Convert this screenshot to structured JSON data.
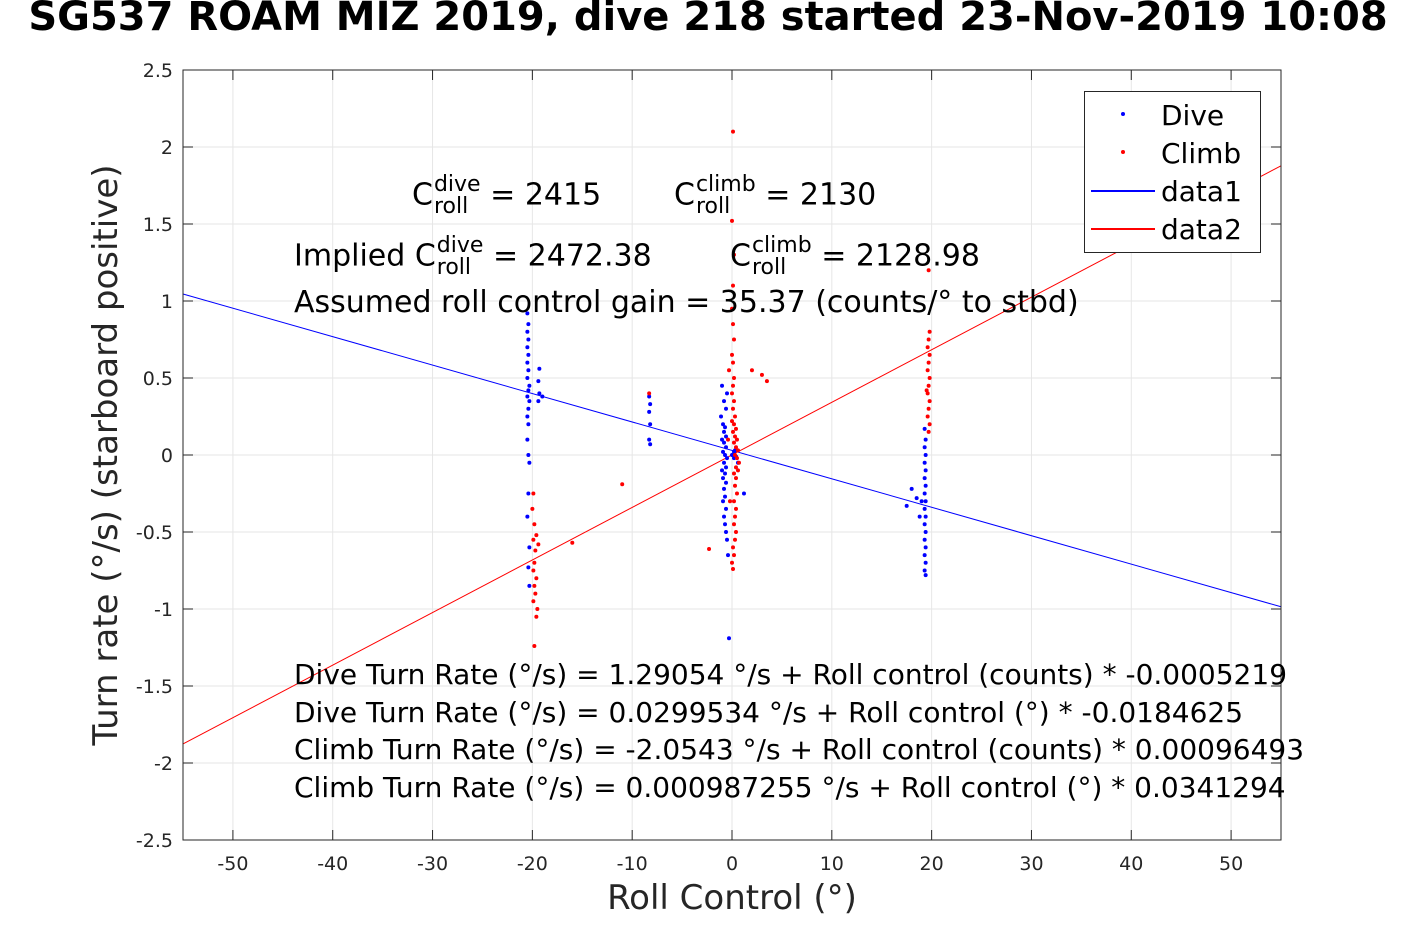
{
  "title": "SG537 ROAM MIZ 2019, dive 218 started 23-Nov-2019 10:08",
  "xlabel": "Roll Control (°)",
  "ylabel": "Turn rate (°/s) (starboard positive)",
  "annotations": {
    "c_roll_dive": {
      "base": "C",
      "sup": "dive",
      "sub": "roll",
      "value": "= 2415"
    },
    "c_roll_climb": {
      "base": "C",
      "sup": "climb",
      "sub": "roll",
      "value": "= 2130"
    },
    "implied_prefix": "Implied ",
    "implied_dive": {
      "base": "C",
      "sup": "dive",
      "sub": "roll",
      "value": "= 2472.38"
    },
    "implied_climb": {
      "base": "C",
      "sup": "climb",
      "sub": "roll",
      "value": "= 2128.98"
    },
    "gain": "Assumed roll control gain = 35.37 (counts/° to stbd)",
    "equations": [
      "Dive Turn Rate (°/s) = 1.29054 °/s + Roll control (counts) * -0.0005219",
      "Dive Turn Rate (°/s) = 0.0299534 °/s + Roll control (°) * -0.0184625",
      "Climb Turn Rate (°/s) = -2.0543 °/s + Roll control (counts) * 0.00096493",
      "Climb Turn Rate (°/s) = 0.000987255 °/s + Roll control (°) * 0.0341294"
    ]
  },
  "legend": {
    "placement": "top-right",
    "entries": [
      {
        "label": "Dive",
        "kind": "dot",
        "color": "#0000ff"
      },
      {
        "label": "Climb",
        "kind": "dot",
        "color": "#ff0000"
      },
      {
        "label": "data1",
        "kind": "line",
        "color": "#0000ff"
      },
      {
        "label": "data2",
        "kind": "line",
        "color": "#ff0000"
      }
    ]
  },
  "chart_data": {
    "type": "scatter",
    "title": "SG537 ROAM MIZ 2019, dive 218 started 23-Nov-2019 10:08",
    "xlabel": "Roll Control (°)",
    "ylabel": "Turn rate (°/s) (starboard positive)",
    "xlim": [
      -55,
      55
    ],
    "ylim": [
      -2.5,
      2.5
    ],
    "xticks": [
      -50,
      -40,
      -30,
      -20,
      -10,
      0,
      10,
      20,
      30,
      40,
      50
    ],
    "yticks": [
      -2.5,
      -2,
      -1.5,
      -1,
      -0.5,
      0,
      0.5,
      1,
      1.5,
      2,
      2.5
    ],
    "ytick_labels": [
      "-2.5",
      "-2",
      "-1.5",
      "-1",
      "-0.5",
      "0",
      "0.5",
      "1",
      "1.5",
      "2",
      "2.5"
    ],
    "grid": true,
    "series": [
      {
        "name": "Dive",
        "kind": "scatter",
        "color": "#0000ff",
        "points": [
          [
            -20.5,
            0.92
          ],
          [
            -20.4,
            0.85
          ],
          [
            -20.5,
            0.8
          ],
          [
            -20.4,
            0.75
          ],
          [
            -20.5,
            0.7
          ],
          [
            -20.4,
            0.65
          ],
          [
            -20.5,
            0.6
          ],
          [
            -20.4,
            0.55
          ],
          [
            -20.5,
            0.5
          ],
          [
            -20.3,
            0.45
          ],
          [
            -20.4,
            0.42
          ],
          [
            -20.5,
            0.38
          ],
          [
            -20.3,
            0.35
          ],
          [
            -20.4,
            0.3
          ],
          [
            -20.5,
            0.25
          ],
          [
            -20.4,
            0.2
          ],
          [
            -20.5,
            0.1
          ],
          [
            -20.4,
            0.0
          ],
          [
            -20.3,
            -0.05
          ],
          [
            -19.3,
            0.56
          ],
          [
            -19.4,
            0.48
          ],
          [
            -19.3,
            0.4
          ],
          [
            -19.4,
            0.35
          ],
          [
            -19.0,
            0.38
          ],
          [
            -20.4,
            -0.25
          ],
          [
            -20.5,
            -0.4
          ],
          [
            -20.3,
            -0.6
          ],
          [
            -20.4,
            -0.73
          ],
          [
            -20.3,
            -0.85
          ],
          [
            -8.3,
            0.38
          ],
          [
            -8.2,
            0.33
          ],
          [
            -8.3,
            0.28
          ],
          [
            -8.2,
            0.2
          ],
          [
            -8.3,
            0.1
          ],
          [
            -8.2,
            0.07
          ],
          [
            -1.0,
            0.45
          ],
          [
            -0.8,
            0.35
          ],
          [
            -0.6,
            0.3
          ],
          [
            -1.1,
            0.25
          ],
          [
            -0.9,
            0.2
          ],
          [
            -0.7,
            0.18
          ],
          [
            -0.8,
            0.15
          ],
          [
            -0.6,
            0.12
          ],
          [
            -1.0,
            0.1
          ],
          [
            -0.8,
            0.08
          ],
          [
            -0.6,
            0.05
          ],
          [
            -0.9,
            0.02
          ],
          [
            -0.7,
            0.0
          ],
          [
            -0.5,
            -0.02
          ],
          [
            -0.8,
            -0.05
          ],
          [
            -0.6,
            -0.08
          ],
          [
            -1.0,
            -0.1
          ],
          [
            -0.7,
            -0.12
          ],
          [
            -0.9,
            -0.15
          ],
          [
            -0.6,
            -0.18
          ],
          [
            -0.8,
            -0.22
          ],
          [
            -0.7,
            -0.27
          ],
          [
            -0.9,
            -0.3
          ],
          [
            -0.6,
            -0.35
          ],
          [
            -0.8,
            -0.4
          ],
          [
            -0.7,
            -0.45
          ],
          [
            -0.6,
            -0.5
          ],
          [
            -0.5,
            -0.55
          ],
          [
            -0.4,
            -0.65
          ],
          [
            -0.3,
            -1.19
          ],
          [
            -0.5,
            0.4
          ],
          [
            0.0,
            0.0
          ],
          [
            0.2,
            0.02
          ],
          [
            0.4,
            -0.01
          ],
          [
            0.3,
            0.03
          ],
          [
            1.2,
            -0.25
          ],
          [
            0.6,
            -0.05
          ],
          [
            0.2,
            -0.02
          ],
          [
            19.3,
            0.17
          ],
          [
            19.4,
            0.1
          ],
          [
            19.3,
            0.05
          ],
          [
            19.4,
            0.0
          ],
          [
            19.3,
            -0.05
          ],
          [
            19.4,
            -0.1
          ],
          [
            19.3,
            -0.15
          ],
          [
            19.4,
            -0.2
          ],
          [
            19.3,
            -0.25
          ],
          [
            19.4,
            -0.3
          ],
          [
            19.3,
            -0.35
          ],
          [
            19.4,
            -0.4
          ],
          [
            19.3,
            -0.45
          ],
          [
            19.4,
            -0.5
          ],
          [
            19.3,
            -0.55
          ],
          [
            19.4,
            -0.6
          ],
          [
            19.3,
            -0.65
          ],
          [
            19.4,
            -0.7
          ],
          [
            19.3,
            -0.75
          ],
          [
            19.4,
            -0.78
          ],
          [
            18.0,
            -0.22
          ],
          [
            17.5,
            -0.33
          ],
          [
            18.5,
            -0.28
          ],
          [
            19.0,
            -0.3
          ],
          [
            18.8,
            -0.4
          ]
        ]
      },
      {
        "name": "Climb",
        "kind": "scatter",
        "color": "#ff0000",
        "points": [
          [
            -19.9,
            -0.25
          ],
          [
            -20.0,
            -0.35
          ],
          [
            -19.8,
            -0.45
          ],
          [
            -19.9,
            -0.55
          ],
          [
            -19.7,
            -0.62
          ],
          [
            -19.8,
            -0.7
          ],
          [
            -19.9,
            -0.75
          ],
          [
            -19.6,
            -0.8
          ],
          [
            -19.8,
            -0.85
          ],
          [
            -19.7,
            -0.9
          ],
          [
            -19.9,
            -0.95
          ],
          [
            -19.5,
            -1.0
          ],
          [
            -19.6,
            -1.05
          ],
          [
            -19.8,
            -1.24
          ],
          [
            -19.4,
            -0.58
          ],
          [
            -19.6,
            -0.52
          ],
          [
            -8.3,
            0.4
          ],
          [
            -11.0,
            -0.19
          ],
          [
            -16.0,
            -0.57
          ],
          [
            -2.3,
            -0.61
          ],
          [
            -0.3,
            0.55
          ],
          [
            0.1,
            2.1
          ],
          [
            0.0,
            1.52
          ],
          [
            0.2,
            1.3
          ],
          [
            0.1,
            1.1
          ],
          [
            0.0,
            0.95
          ],
          [
            0.1,
            0.85
          ],
          [
            0.2,
            0.75
          ],
          [
            0.0,
            0.65
          ],
          [
            0.1,
            0.6
          ],
          [
            0.2,
            0.5
          ],
          [
            0.1,
            0.45
          ],
          [
            0.0,
            0.4
          ],
          [
            0.2,
            0.35
          ],
          [
            0.1,
            0.3
          ],
          [
            0.3,
            0.25
          ],
          [
            0.0,
            0.22
          ],
          [
            0.2,
            0.2
          ],
          [
            0.4,
            0.17
          ],
          [
            0.1,
            0.15
          ],
          [
            0.3,
            0.12
          ],
          [
            0.5,
            0.1
          ],
          [
            0.2,
            0.08
          ],
          [
            0.4,
            0.05
          ],
          [
            0.6,
            0.03
          ],
          [
            0.3,
            0.0
          ],
          [
            0.5,
            -0.02
          ],
          [
            0.7,
            -0.05
          ],
          [
            0.4,
            -0.08
          ],
          [
            0.6,
            -0.1
          ],
          [
            0.2,
            -0.12
          ],
          [
            0.4,
            -0.15
          ],
          [
            0.3,
            -0.2
          ],
          [
            0.5,
            -0.25
          ],
          [
            0.2,
            -0.3
          ],
          [
            0.4,
            -0.35
          ],
          [
            0.3,
            -0.4
          ],
          [
            0.2,
            -0.45
          ],
          [
            0.4,
            -0.5
          ],
          [
            0.3,
            -0.55
          ],
          [
            0.1,
            -0.6
          ],
          [
            0.2,
            -0.65
          ],
          [
            0.0,
            -0.7
          ],
          [
            0.1,
            -0.74
          ],
          [
            2.0,
            0.55
          ],
          [
            3.0,
            0.52
          ],
          [
            3.5,
            0.48
          ],
          [
            -0.2,
            -0.3
          ],
          [
            -0.4,
            0.1
          ],
          [
            19.7,
            1.2
          ],
          [
            19.8,
            0.8
          ],
          [
            19.7,
            0.75
          ],
          [
            19.6,
            0.7
          ],
          [
            19.8,
            0.65
          ],
          [
            19.7,
            0.6
          ],
          [
            19.6,
            0.55
          ],
          [
            19.8,
            0.5
          ],
          [
            19.7,
            0.45
          ],
          [
            19.6,
            0.4
          ],
          [
            19.8,
            0.35
          ],
          [
            19.7,
            0.3
          ],
          [
            19.6,
            0.25
          ],
          [
            19.8,
            0.2
          ],
          [
            19.7,
            0.15
          ],
          [
            19.5,
            0.42
          ]
        ]
      },
      {
        "name": "data1",
        "kind": "line",
        "color": "#0000ff",
        "x": [
          -55,
          55
        ],
        "y": [
          1.0454,
          -0.9856
        ]
      },
      {
        "name": "data2",
        "kind": "line",
        "color": "#ff0000",
        "x": [
          -55,
          55
        ],
        "y": [
          -1.8762,
          1.8781
        ]
      }
    ]
  }
}
